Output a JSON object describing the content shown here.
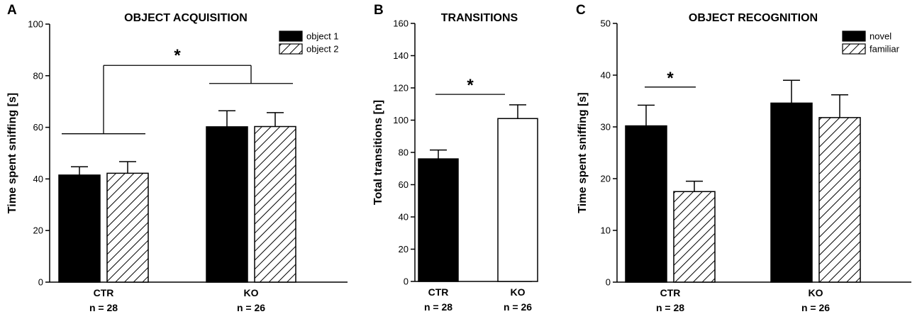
{
  "chart_data": [
    {
      "panel": "A",
      "type": "bar",
      "title": "OBJECT ACQUISITION",
      "ylabel": "Time spent sniffing [s]",
      "xlabel": "",
      "ylim": [
        0,
        100
      ],
      "yticks": [
        0,
        20,
        40,
        60,
        80,
        100
      ],
      "categories": [
        "CTR",
        "KO"
      ],
      "category_n": [
        "n = 28",
        "n = 26"
      ],
      "legend_position": "top-right",
      "series": [
        {
          "name": "object 1",
          "fill": "solid",
          "values": [
            41.5,
            60.2
          ],
          "errors": [
            3.2,
            6.2
          ]
        },
        {
          "name": "object 2",
          "fill": "hatch",
          "values": [
            42.2,
            60.3
          ],
          "errors": [
            4.5,
            5.4
          ]
        }
      ],
      "annotations": [
        {
          "type": "group-bracket",
          "label": "*",
          "from_category": 0,
          "to_category": 1,
          "value": 84,
          "sub_brackets": [
            57.5,
            77
          ]
        }
      ]
    },
    {
      "panel": "B",
      "type": "bar",
      "title": "TRANSITIONS",
      "ylabel": "Total transitions [n]",
      "xlabel": "",
      "ylim": [
        0,
        160
      ],
      "yticks": [
        0,
        20,
        40,
        60,
        80,
        100,
        120,
        140,
        160
      ],
      "categories": [
        "CTR",
        "KO"
      ],
      "category_n": [
        "n = 28",
        "n = 26"
      ],
      "series": [
        {
          "name": "transitions",
          "fill_per_bar": [
            "solid",
            "open"
          ],
          "values": [
            76,
            101
          ],
          "errors": [
            5.5,
            8.5
          ]
        }
      ],
      "annotations": [
        {
          "type": "line",
          "label": "*",
          "from_category": 0,
          "to_category": 1,
          "value": 116
        }
      ]
    },
    {
      "panel": "C",
      "type": "bar",
      "title": "OBJECT RECOGNITION",
      "ylabel": "Time spent sniffing [s]",
      "xlabel": "",
      "ylim": [
        0,
        50
      ],
      "yticks": [
        0,
        10,
        20,
        30,
        40,
        50
      ],
      "categories": [
        "CTR",
        "KO"
      ],
      "category_n": [
        "n = 28",
        "n = 26"
      ],
      "legend_position": "top-right",
      "series": [
        {
          "name": "novel",
          "fill": "solid",
          "values": [
            30.2,
            34.6
          ],
          "errors": [
            4.0,
            4.4
          ]
        },
        {
          "name": "familiar",
          "fill": "hatch",
          "values": [
            17.5,
            31.8
          ],
          "errors": [
            2.0,
            4.4
          ]
        }
      ],
      "annotations": [
        {
          "type": "line",
          "label": "*",
          "category": 0,
          "value": 37.7
        }
      ]
    }
  ]
}
